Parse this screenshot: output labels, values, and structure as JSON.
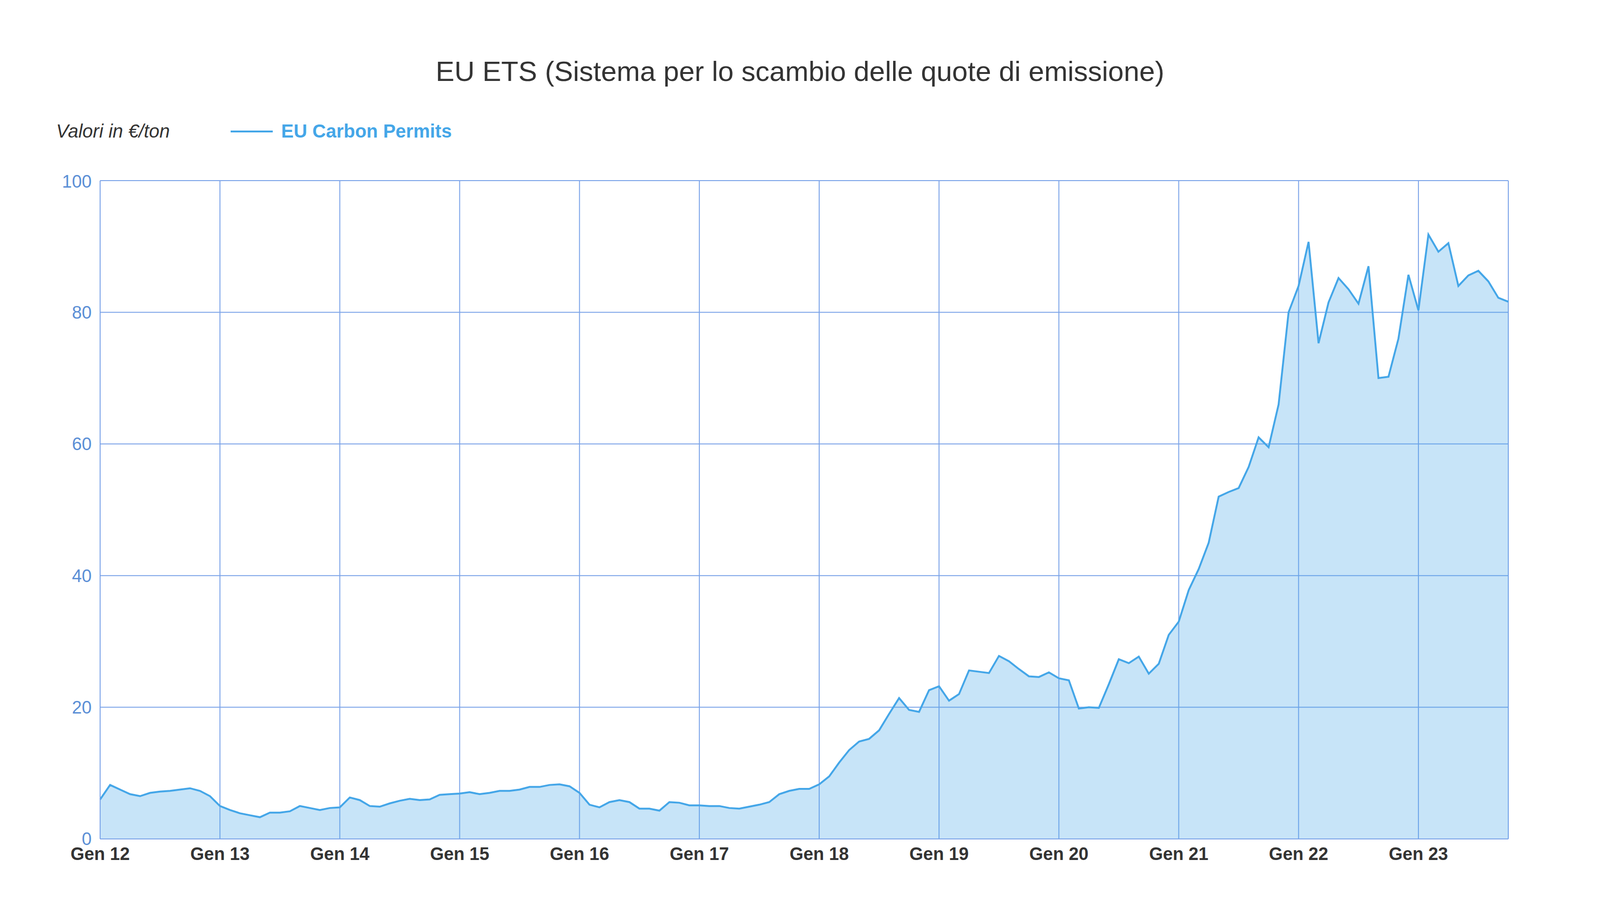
{
  "chart_data": {
    "type": "area",
    "title": "EU ETS (Sistema per lo scambio delle quote di emissione)",
    "ylabel": "Valori in €/ton",
    "categories": [
      "Gen 12",
      null,
      null,
      null,
      null,
      null,
      null,
      null,
      null,
      null,
      null,
      null,
      "Gen 13",
      null,
      null,
      null,
      null,
      null,
      null,
      null,
      null,
      null,
      null,
      null,
      "Gen 14",
      null,
      null,
      null,
      null,
      null,
      null,
      null,
      null,
      null,
      null,
      null,
      "Gen 15",
      null,
      null,
      null,
      null,
      null,
      null,
      null,
      null,
      null,
      null,
      null,
      "Gen 16",
      null,
      null,
      null,
      null,
      null,
      null,
      null,
      null,
      null,
      null,
      null,
      "Gen 17",
      null,
      null,
      null,
      null,
      null,
      null,
      null,
      null,
      null,
      null,
      null,
      "Gen 18",
      null,
      null,
      null,
      null,
      null,
      null,
      null,
      null,
      null,
      null,
      null,
      "Gen 19",
      null,
      null,
      null,
      null,
      null,
      null,
      null,
      null,
      null,
      null,
      null,
      "Gen 20",
      null,
      null,
      null,
      null,
      null,
      null,
      null,
      null,
      null,
      null,
      null,
      "Gen 21",
      null,
      null,
      null,
      null,
      null,
      null,
      null,
      null,
      null,
      null,
      null,
      "Gen 22",
      null,
      null,
      null,
      null,
      null,
      null,
      null,
      null,
      null,
      null,
      null,
      "Gen 23",
      null,
      null,
      null,
      null,
      null,
      null,
      null,
      null,
      null
    ],
    "series": [
      {
        "name": "EU Carbon Permits",
        "color": "#44a6e8",
        "values": [
          6.0,
          8.2,
          7.5,
          6.8,
          6.5,
          7.0,
          7.2,
          7.3,
          7.5,
          7.7,
          7.3,
          6.5,
          5.0,
          4.4,
          3.9,
          3.6,
          3.3,
          4.0,
          4.0,
          4.2,
          5.0,
          4.7,
          4.4,
          4.7,
          4.8,
          6.3,
          5.9,
          5.0,
          4.9,
          5.4,
          5.8,
          6.1,
          5.9,
          6.0,
          6.7,
          6.8,
          6.9,
          7.1,
          6.8,
          7.0,
          7.3,
          7.3,
          7.5,
          7.9,
          7.9,
          8.2,
          8.3,
          8.0,
          7.0,
          5.2,
          4.8,
          5.6,
          5.9,
          5.6,
          4.6,
          4.6,
          4.3,
          5.6,
          5.5,
          5.1,
          5.1,
          5.0,
          5.0,
          4.7,
          4.6,
          4.9,
          5.2,
          5.6,
          6.8,
          7.3,
          7.6,
          7.6,
          8.3,
          9.5,
          11.6,
          13.5,
          14.8,
          15.2,
          16.5,
          19.0,
          21.4,
          19.6,
          19.3,
          22.6,
          23.2,
          21.0,
          22.0,
          25.6,
          25.4,
          25.2,
          27.8,
          27.0,
          25.8,
          24.7,
          24.6,
          25.3,
          24.4,
          24.1,
          19.8,
          20.0,
          19.9,
          23.5,
          27.3,
          26.7,
          27.7,
          25.1,
          26.6,
          31.0,
          33.0,
          37.8,
          41.0,
          45.0,
          52.0,
          52.7,
          53.3,
          56.5,
          61.0,
          59.5,
          66.0,
          80.0,
          84.0,
          90.7,
          75.3,
          81.5,
          85.2,
          83.5,
          81.3,
          87.0,
          70.0,
          70.2,
          76.0,
          85.7,
          80.3,
          91.8,
          89.2,
          90.5,
          84.0,
          85.6,
          86.3,
          84.7,
          82.2,
          81.6
        ]
      }
    ],
    "ylim": [
      0,
      100
    ],
    "yticks": [
      0,
      20,
      40,
      60,
      80,
      100
    ],
    "grid": true,
    "legend": "top left"
  }
}
